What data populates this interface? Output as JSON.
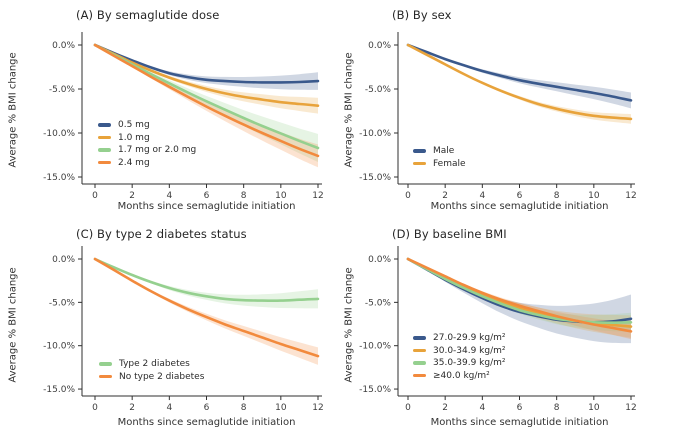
{
  "figure": {
    "background": "#ffffff",
    "axis_color": "#2f2f2f",
    "tick_label_color": "#3d3d3d"
  },
  "palette": {
    "blue": "#3a598c",
    "gold": "#e8a33b",
    "green": "#95d08f",
    "orange": "#f28a3d"
  },
  "chart_data": [
    {
      "type": "line",
      "title": "(A) By semaglutide dose",
      "xlabel": "Months since semaglutide initiation",
      "ylabel": "Average % BMI change",
      "xlim": [
        0,
        12
      ],
      "ylim": [
        0,
        -15
      ],
      "grid": false,
      "legend_position": "inside-lower-left",
      "xticks": [
        "0",
        "2",
        "4",
        "6",
        "8",
        "10",
        "12"
      ],
      "xtick_values": [
        0,
        2,
        4,
        6,
        8,
        10,
        12
      ],
      "yticks": [
        "0.0%",
        "-5.0%",
        "-10.0%",
        "-15.0%"
      ],
      "ytick_values": [
        0,
        -5,
        -10,
        -15
      ],
      "x_months": [
        0,
        1,
        2,
        3,
        4,
        5,
        6,
        7,
        8,
        9,
        10,
        11,
        12
      ],
      "series": [
        {
          "name": "0.5 mg",
          "color": "#3a598c",
          "ci_end_halfwidth_pct": 1.0,
          "values": [
            0,
            -0.9,
            -1.75,
            -2.55,
            -3.2,
            -3.65,
            -3.95,
            -4.1,
            -4.2,
            -4.25,
            -4.25,
            -4.2,
            -4.1
          ]
        },
        {
          "name": "1.0 mg",
          "color": "#e8a33b",
          "ci_end_halfwidth_pct": 0.9,
          "values": [
            0,
            -1.0,
            -2.0,
            -2.9,
            -3.7,
            -4.4,
            -5.0,
            -5.5,
            -5.9,
            -6.2,
            -6.5,
            -6.7,
            -6.9
          ]
        },
        {
          "name": "1.7 mg or 2.0 mg",
          "color": "#95d08f",
          "ci_end_halfwidth_pct": 1.6,
          "values": [
            0,
            -1.1,
            -2.2,
            -3.3,
            -4.35,
            -5.4,
            -6.4,
            -7.35,
            -8.3,
            -9.2,
            -10.05,
            -10.9,
            -11.7
          ]
        },
        {
          "name": "2.4 mg",
          "color": "#f28a3d",
          "ci_end_halfwidth_pct": 1.3,
          "values": [
            0,
            -1.2,
            -2.4,
            -3.6,
            -4.75,
            -5.9,
            -7.0,
            -8.05,
            -9.05,
            -10.0,
            -10.9,
            -11.8,
            -12.6
          ]
        }
      ]
    },
    {
      "type": "line",
      "title": "(B) By sex",
      "xlabel": "Months since semaglutide initiation",
      "ylabel": "Average % BMI change",
      "xlim": [
        0,
        12
      ],
      "ylim": [
        0,
        -15
      ],
      "grid": false,
      "legend_position": "inside-lower-left",
      "xticks": [
        "0",
        "2",
        "4",
        "6",
        "8",
        "10",
        "12"
      ],
      "xtick_values": [
        0,
        2,
        4,
        6,
        8,
        10,
        12
      ],
      "yticks": [
        "0.0%",
        "-5.0%",
        "-10.0%",
        "-15.0%"
      ],
      "ytick_values": [
        0,
        -5,
        -10,
        -15
      ],
      "x_months": [
        0,
        1,
        2,
        3,
        4,
        5,
        6,
        7,
        8,
        9,
        10,
        11,
        12
      ],
      "series": [
        {
          "name": "Male",
          "color": "#3a598c",
          "ci_end_halfwidth_pct": 0.9,
          "values": [
            0,
            -0.8,
            -1.6,
            -2.3,
            -2.95,
            -3.5,
            -4.0,
            -4.4,
            -4.75,
            -5.1,
            -5.45,
            -5.85,
            -6.3
          ]
        },
        {
          "name": "Female",
          "color": "#e8a33b",
          "ci_end_halfwidth_pct": 0.55,
          "values": [
            0,
            -1.1,
            -2.2,
            -3.3,
            -4.3,
            -5.2,
            -6.0,
            -6.7,
            -7.25,
            -7.7,
            -8.05,
            -8.25,
            -8.4
          ]
        }
      ]
    },
    {
      "type": "line",
      "title": "(C) By type 2 diabetes status",
      "xlabel": "Months since semaglutide initiation",
      "ylabel": "Average % BMI change",
      "xlim": [
        0,
        12
      ],
      "ylim": [
        0,
        -15
      ],
      "grid": false,
      "legend_position": "inside-lower-left",
      "xticks": [
        "0",
        "2",
        "4",
        "6",
        "8",
        "10",
        "12"
      ],
      "xtick_values": [
        0,
        2,
        4,
        6,
        8,
        10,
        12
      ],
      "yticks": [
        "0.0%",
        "-5.0%",
        "-10.0%",
        "-15.0%"
      ],
      "ytick_values": [
        0,
        -5,
        -10,
        -15
      ],
      "x_months": [
        0,
        1,
        2,
        3,
        4,
        5,
        6,
        7,
        8,
        9,
        10,
        11,
        12
      ],
      "series": [
        {
          "name": "Type 2 diabetes",
          "color": "#95d08f",
          "ci_end_halfwidth_pct": 1.1,
          "values": [
            0,
            -0.95,
            -1.85,
            -2.65,
            -3.35,
            -3.9,
            -4.3,
            -4.6,
            -4.75,
            -4.8,
            -4.8,
            -4.7,
            -4.6
          ]
        },
        {
          "name": "No type 2 diabetes",
          "color": "#f28a3d",
          "ci_end_halfwidth_pct": 1.0,
          "values": [
            0,
            -1.25,
            -2.5,
            -3.7,
            -4.8,
            -5.8,
            -6.7,
            -7.55,
            -8.3,
            -9.05,
            -9.8,
            -10.5,
            -11.2
          ]
        }
      ]
    },
    {
      "type": "line",
      "title": "(D) By baseline BMI",
      "xlabel": "Months since semaglutide initiation",
      "ylabel": "Average % BMI change",
      "xlim": [
        0,
        12
      ],
      "ylim": [
        0,
        -15
      ],
      "grid": false,
      "legend_position": "inside-lower-left",
      "xticks": [
        "0",
        "2",
        "4",
        "6",
        "8",
        "10",
        "12"
      ],
      "xtick_values": [
        0,
        2,
        4,
        6,
        8,
        10,
        12
      ],
      "yticks": [
        "0.0%",
        "-5.0%",
        "-10.0%",
        "-15.0%"
      ],
      "ytick_values": [
        0,
        -5,
        -10,
        -15
      ],
      "x_months": [
        0,
        1,
        2,
        3,
        4,
        5,
        6,
        7,
        8,
        9,
        10,
        11,
        12
      ],
      "series": [
        {
          "name": "27.0-29.9 kg/m²",
          "color": "#3a598c",
          "ci_end_halfwidth_pct": 2.8,
          "values": [
            0,
            -1.2,
            -2.4,
            -3.5,
            -4.5,
            -5.4,
            -6.1,
            -6.6,
            -7.0,
            -7.2,
            -7.3,
            -7.2,
            -6.9
          ]
        },
        {
          "name": "30.0-34.9 kg/m²",
          "color": "#e8a33b",
          "ci_end_halfwidth_pct": 1.3,
          "values": [
            0,
            -1.1,
            -2.2,
            -3.2,
            -4.1,
            -4.9,
            -5.6,
            -6.2,
            -6.7,
            -7.1,
            -7.4,
            -7.6,
            -7.8
          ]
        },
        {
          "name": "35.0-39.9 kg/m²",
          "color": "#95d08f",
          "ci_end_halfwidth_pct": 1.1,
          "values": [
            0,
            -1.15,
            -2.3,
            -3.35,
            -4.3,
            -5.15,
            -5.9,
            -6.45,
            -6.9,
            -7.15,
            -7.3,
            -7.35,
            -7.3
          ]
        },
        {
          "name": "≥40.0 kg/m²",
          "color": "#f28a3d",
          "ci_end_halfwidth_pct": 0.9,
          "values": [
            0,
            -1.0,
            -2.0,
            -3.0,
            -3.9,
            -4.7,
            -5.4,
            -6.0,
            -6.6,
            -7.1,
            -7.55,
            -7.95,
            -8.35
          ]
        }
      ]
    }
  ]
}
